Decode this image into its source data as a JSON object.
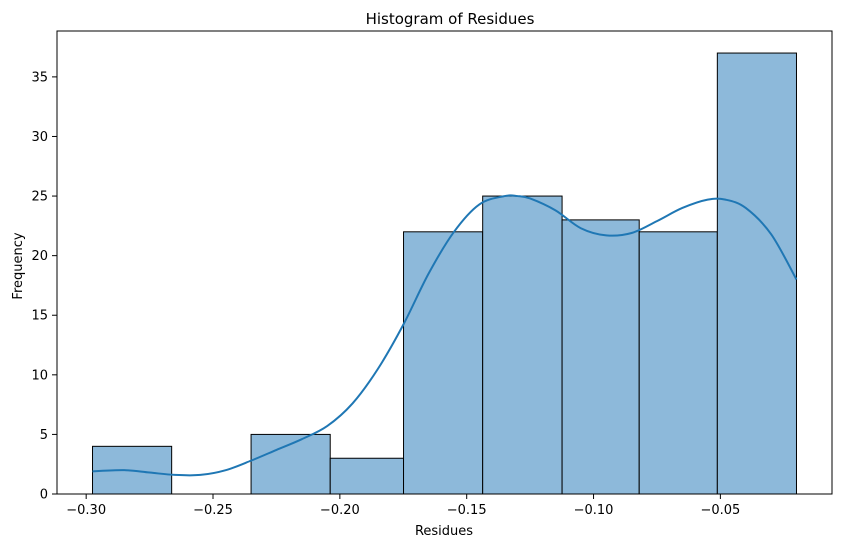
{
  "chart_data": {
    "type": "bar",
    "title": "Histogram of Residues",
    "xlabel": "Residues",
    "ylabel": "Frequency",
    "bins": [
      {
        "start": -0.2975,
        "end": -0.2663,
        "count": 4
      },
      {
        "start": -0.2663,
        "end": -0.235,
        "count": 0
      },
      {
        "start": -0.235,
        "end": -0.2038,
        "count": 5
      },
      {
        "start": -0.2038,
        "end": -0.1749,
        "count": 3
      },
      {
        "start": -0.1749,
        "end": -0.1437,
        "count": 22
      },
      {
        "start": -0.1437,
        "end": -0.1124,
        "count": 25
      },
      {
        "start": -0.1124,
        "end": -0.082,
        "count": 23
      },
      {
        "start": -0.082,
        "end": -0.0512,
        "count": 22
      },
      {
        "start": -0.0512,
        "end": -0.02,
        "count": 37
      }
    ],
    "kde": {
      "x": [
        -0.2975,
        -0.285,
        -0.275,
        -0.265,
        -0.255,
        -0.245,
        -0.235,
        -0.225,
        -0.215,
        -0.205,
        -0.195,
        -0.185,
        -0.175,
        -0.165,
        -0.155,
        -0.145,
        -0.135,
        -0.13,
        -0.125,
        -0.115,
        -0.105,
        -0.095,
        -0.085,
        -0.075,
        -0.065,
        -0.055,
        -0.048,
        -0.04,
        -0.03,
        -0.02
      ],
      "y": [
        1.9,
        2.0,
        1.8,
        1.6,
        1.6,
        2.0,
        2.8,
        3.7,
        4.6,
        5.7,
        7.6,
        10.5,
        14.2,
        18.5,
        22.0,
        24.3,
        25.0,
        25.0,
        24.8,
        23.8,
        22.3,
        21.7,
        21.9,
        22.9,
        24.0,
        24.7,
        24.7,
        24.0,
        21.8,
        18.0
      ]
    },
    "xlim": [
      -0.3115,
      -0.006
    ],
    "ylim": [
      0,
      38.85
    ],
    "xticks": [
      -0.3,
      -0.25,
      -0.2,
      -0.15,
      -0.1,
      -0.05
    ],
    "xtick_labels": [
      "−0.30",
      "−0.25",
      "−0.20",
      "−0.15",
      "−0.10",
      "−0.05"
    ],
    "yticks": [
      0,
      5,
      10,
      15,
      20,
      25,
      30,
      35
    ],
    "ytick_labels": [
      "0",
      "5",
      "10",
      "15",
      "20",
      "25",
      "30",
      "35"
    ],
    "grid": false,
    "bar_fill": "#8db9da",
    "bar_edge": "#000000",
    "line_color": "#1f77b4"
  }
}
